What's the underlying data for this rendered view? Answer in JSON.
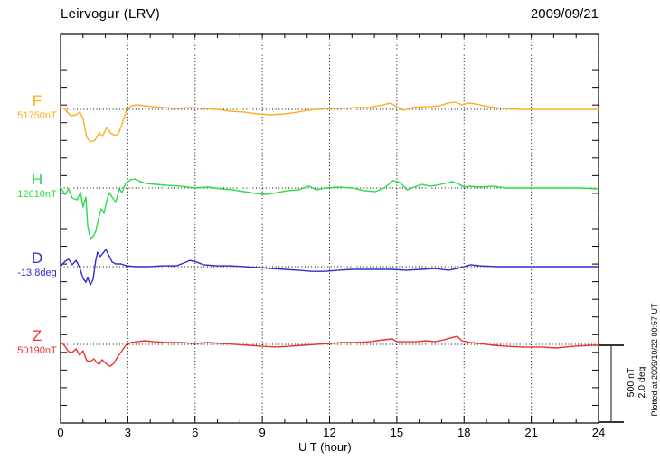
{
  "header": {
    "title": "Leirvogur (LRV)",
    "date": "2009/09/21"
  },
  "axis": {
    "xlabel": "U T (hour)"
  },
  "scale_bar": {
    "line1": "500 nT",
    "line2": "2.0 deg"
  },
  "footer": {
    "plotted_at": "Plotted at 2009/10/22 00:57 UT"
  },
  "chart_data": {
    "type": "line",
    "title": "Leirvogur (LRV)",
    "date": "2009/09/21",
    "xlabel": "U T (hour)",
    "xlim": [
      0,
      24
    ],
    "x_ticks": [
      0,
      3,
      6,
      9,
      12,
      15,
      18,
      21,
      24
    ],
    "grid": "dotted vertical gridlines every 3 hours; dotted horizontal baseline per trace",
    "legend_position": "left margin",
    "scale": {
      "nT_per_division": 500,
      "deg_per_division": 2.0
    },
    "series": [
      {
        "id": "F",
        "label": "F",
        "reference": "51750nT",
        "unit": "nT",
        "color": "#FFAD21",
        "points": [
          [
            0,
            17
          ],
          [
            0.2,
            0
          ],
          [
            0.45,
            -41
          ],
          [
            0.7,
            -35
          ],
          [
            0.85,
            -17
          ],
          [
            1.0,
            -58
          ],
          [
            1.17,
            -180
          ],
          [
            1.33,
            -209
          ],
          [
            1.53,
            -198
          ],
          [
            1.73,
            -151
          ],
          [
            1.86,
            -174
          ],
          [
            2.06,
            -116
          ],
          [
            2.22,
            -151
          ],
          [
            2.42,
            -168
          ],
          [
            2.58,
            -157
          ],
          [
            2.78,
            -81
          ],
          [
            2.94,
            -6
          ],
          [
            3.15,
            23
          ],
          [
            3.43,
            29
          ],
          [
            3.75,
            23
          ],
          [
            4.15,
            17
          ],
          [
            4.56,
            12
          ],
          [
            5.16,
            6
          ],
          [
            5.77,
            12
          ],
          [
            6.37,
            6
          ],
          [
            6.98,
            0
          ],
          [
            7.58,
            -12
          ],
          [
            8.19,
            -17
          ],
          [
            8.79,
            -29
          ],
          [
            9.4,
            -35
          ],
          [
            10.0,
            -29
          ],
          [
            10.6,
            -17
          ],
          [
            11.0,
            -6
          ],
          [
            11.4,
            0
          ],
          [
            12.0,
            6
          ],
          [
            12.6,
            6
          ],
          [
            13.2,
            12
          ],
          [
            13.8,
            12
          ],
          [
            14.4,
            29
          ],
          [
            14.7,
            41
          ],
          [
            15.0,
            17
          ],
          [
            15.3,
            -6
          ],
          [
            15.7,
            12
          ],
          [
            16.1,
            17
          ],
          [
            16.5,
            17
          ],
          [
            16.9,
            23
          ],
          [
            17.3,
            41
          ],
          [
            17.6,
            47
          ],
          [
            17.9,
            29
          ],
          [
            18.2,
            41
          ],
          [
            18.5,
            35
          ],
          [
            19.1,
            17
          ],
          [
            19.7,
            6
          ],
          [
            20.5,
            0
          ],
          [
            21.5,
            0
          ],
          [
            22.7,
            0
          ],
          [
            24,
            0
          ]
        ]
      },
      {
        "id": "H",
        "label": "H",
        "reference": "12610nT",
        "unit": "nT",
        "color": "#2BDB4C",
        "points": [
          [
            0,
            6
          ],
          [
            0.2,
            -41
          ],
          [
            0.36,
            -6
          ],
          [
            0.52,
            -64
          ],
          [
            0.73,
            -76
          ],
          [
            0.89,
            -29
          ],
          [
            1.0,
            -122
          ],
          [
            1.13,
            -58
          ],
          [
            1.21,
            -244
          ],
          [
            1.33,
            -326
          ],
          [
            1.45,
            -314
          ],
          [
            1.57,
            -279
          ],
          [
            1.69,
            -198
          ],
          [
            1.81,
            -134
          ],
          [
            1.94,
            -163
          ],
          [
            2.06,
            -81
          ],
          [
            2.18,
            -29
          ],
          [
            2.3,
            -58
          ],
          [
            2.46,
            -93
          ],
          [
            2.62,
            -6
          ],
          [
            2.74,
            -29
          ],
          [
            2.9,
            29
          ],
          [
            3.11,
            52
          ],
          [
            3.31,
            58
          ],
          [
            3.55,
            41
          ],
          [
            3.83,
            29
          ],
          [
            4.24,
            23
          ],
          [
            4.76,
            17
          ],
          [
            5.36,
            12
          ],
          [
            5.97,
            0
          ],
          [
            6.57,
            6
          ],
          [
            7.18,
            -6
          ],
          [
            7.7,
            -12
          ],
          [
            8.19,
            -23
          ],
          [
            8.71,
            -35
          ],
          [
            9.2,
            -41
          ],
          [
            9.68,
            -29
          ],
          [
            10.12,
            -17
          ],
          [
            10.61,
            -12
          ],
          [
            11.09,
            12
          ],
          [
            11.41,
            -12
          ],
          [
            11.82,
            0
          ],
          [
            12.42,
            6
          ],
          [
            13.03,
            0
          ],
          [
            13.55,
            -17
          ],
          [
            14.04,
            -23
          ],
          [
            14.44,
            0
          ],
          [
            14.84,
            47
          ],
          [
            15.17,
            35
          ],
          [
            15.45,
            -12
          ],
          [
            15.77,
            6
          ],
          [
            16.13,
            23
          ],
          [
            16.46,
            12
          ],
          [
            16.78,
            17
          ],
          [
            17.14,
            29
          ],
          [
            17.47,
            41
          ],
          [
            17.79,
            23
          ],
          [
            17.99,
            6
          ],
          [
            18.27,
            12
          ],
          [
            18.68,
            6
          ],
          [
            19.28,
            12
          ],
          [
            19.89,
            0
          ],
          [
            20.69,
            0
          ],
          [
            21.9,
            0
          ],
          [
            23.11,
            0
          ],
          [
            24,
            -6
          ]
        ]
      },
      {
        "id": "D",
        "label": "D",
        "reference": "-13.8deg",
        "unit": "deg",
        "color": "#2E2ECC",
        "points": [
          [
            0,
            0
          ],
          [
            0.2,
            0.14
          ],
          [
            0.36,
            0.19
          ],
          [
            0.52,
            0.05
          ],
          [
            0.69,
            0.16
          ],
          [
            0.85,
            -0.02
          ],
          [
            1.0,
            -0.3
          ],
          [
            1.13,
            -0.4
          ],
          [
            1.21,
            -0.28
          ],
          [
            1.33,
            -0.47
          ],
          [
            1.45,
            -0.33
          ],
          [
            1.57,
            0.16
          ],
          [
            1.65,
            0.37
          ],
          [
            1.77,
            0.26
          ],
          [
            1.9,
            0.35
          ],
          [
            2.02,
            0.44
          ],
          [
            2.14,
            0.3
          ],
          [
            2.3,
            0.12
          ],
          [
            2.46,
            0.07
          ],
          [
            2.7,
            0.07
          ],
          [
            2.94,
            0.02
          ],
          [
            3.35,
            0
          ],
          [
            3.95,
            0
          ],
          [
            4.56,
            0.02
          ],
          [
            5.16,
            0.02
          ],
          [
            5.49,
            0.09
          ],
          [
            5.77,
            0.16
          ],
          [
            6.05,
            0.12
          ],
          [
            6.37,
            0.05
          ],
          [
            6.98,
            0.02
          ],
          [
            7.58,
            0.02
          ],
          [
            8.19,
            0
          ],
          [
            8.79,
            -0.02
          ],
          [
            9.4,
            -0.05
          ],
          [
            10.0,
            -0.07
          ],
          [
            10.6,
            -0.09
          ],
          [
            11.2,
            -0.12
          ],
          [
            11.8,
            -0.12
          ],
          [
            12.4,
            -0.09
          ],
          [
            13.0,
            -0.07
          ],
          [
            13.6,
            -0.07
          ],
          [
            14.2,
            -0.07
          ],
          [
            14.8,
            -0.07
          ],
          [
            15.4,
            -0.09
          ],
          [
            16.1,
            -0.07
          ],
          [
            16.7,
            -0.05
          ],
          [
            17.3,
            -0.09
          ],
          [
            17.7,
            -0.05
          ],
          [
            18.0,
            0
          ],
          [
            18.3,
            0.05
          ],
          [
            18.7,
            0.02
          ],
          [
            19.5,
            0
          ],
          [
            20.7,
            0
          ],
          [
            22.3,
            0
          ],
          [
            24,
            0
          ]
        ]
      },
      {
        "id": "Z",
        "label": "Z",
        "reference": "50190nT",
        "unit": "nT",
        "color": "#EE3030",
        "points": [
          [
            0,
            17
          ],
          [
            0.2,
            -12
          ],
          [
            0.36,
            -47
          ],
          [
            0.52,
            -52
          ],
          [
            0.69,
            -29
          ],
          [
            0.85,
            -70
          ],
          [
            1.0,
            -41
          ],
          [
            1.17,
            -105
          ],
          [
            1.33,
            -110
          ],
          [
            1.49,
            -93
          ],
          [
            1.61,
            -116
          ],
          [
            1.73,
            -128
          ],
          [
            1.85,
            -99
          ],
          [
            1.98,
            -116
          ],
          [
            2.1,
            -134
          ],
          [
            2.22,
            -140
          ],
          [
            2.38,
            -122
          ],
          [
            2.54,
            -81
          ],
          [
            2.74,
            -41
          ],
          [
            2.94,
            0
          ],
          [
            3.15,
            12
          ],
          [
            3.43,
            17
          ],
          [
            3.75,
            23
          ],
          [
            4.15,
            17
          ],
          [
            4.76,
            12
          ],
          [
            5.36,
            12
          ],
          [
            5.97,
            6
          ],
          [
            6.57,
            12
          ],
          [
            7.18,
            6
          ],
          [
            7.78,
            0
          ],
          [
            8.39,
            -6
          ],
          [
            9.0,
            -12
          ],
          [
            9.6,
            -17
          ],
          [
            10.2,
            -12
          ],
          [
            10.8,
            -6
          ],
          [
            11.4,
            0
          ],
          [
            12.0,
            6
          ],
          [
            12.6,
            12
          ],
          [
            13.2,
            12
          ],
          [
            13.8,
            17
          ],
          [
            14.4,
            29
          ],
          [
            14.8,
            35
          ],
          [
            15.0,
            17
          ],
          [
            15.4,
            17
          ],
          [
            15.9,
            17
          ],
          [
            16.3,
            23
          ],
          [
            16.7,
            17
          ],
          [
            17.1,
            29
          ],
          [
            17.4,
            41
          ],
          [
            17.7,
            52
          ],
          [
            17.9,
            23
          ],
          [
            18.3,
            12
          ],
          [
            18.7,
            6
          ],
          [
            19.3,
            -6
          ],
          [
            19.9,
            -12
          ],
          [
            20.7,
            -17
          ],
          [
            21.5,
            -17
          ],
          [
            22.1,
            -23
          ],
          [
            22.9,
            -12
          ],
          [
            23.7,
            -6
          ],
          [
            24,
            -6
          ]
        ]
      }
    ]
  }
}
